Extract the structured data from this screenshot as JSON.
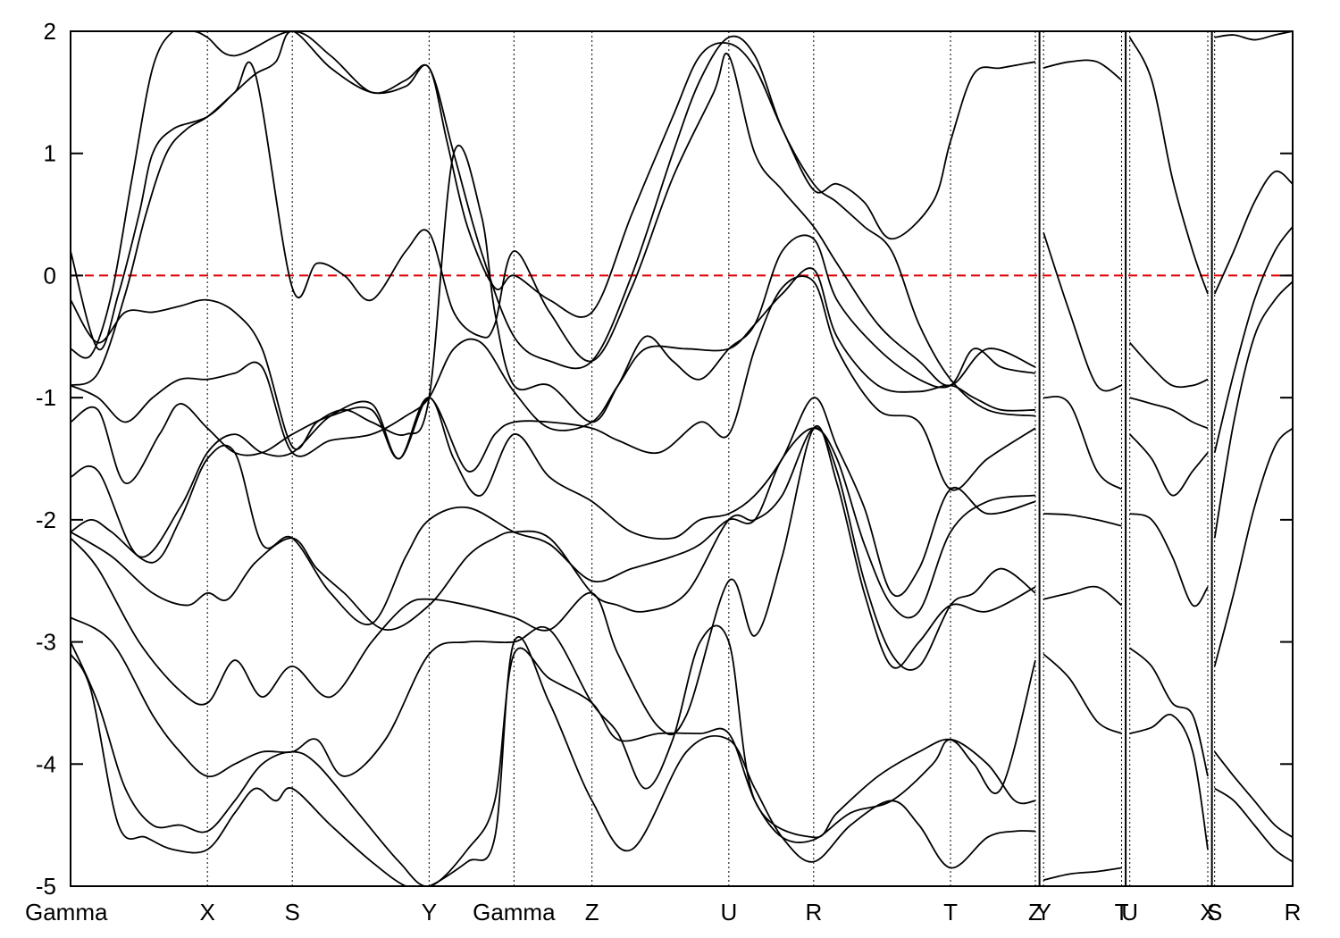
{
  "chart_data": {
    "type": "line",
    "title": "",
    "xlabel": "",
    "ylabel": "",
    "ylim": [
      -5,
      2
    ],
    "yticks": [
      -5,
      -4,
      -3,
      -2,
      -1,
      0,
      1,
      2
    ],
    "fermi_level": 0,
    "k_path": [
      {
        "label": "Gamma",
        "k": 0.0
      },
      {
        "label": "X",
        "k": 1.0
      },
      {
        "label": "S",
        "k": 1.62
      },
      {
        "label": "Y",
        "k": 2.62
      },
      {
        "label": "Gamma",
        "k": 3.24
      },
      {
        "label": "Z",
        "k": 3.81
      },
      {
        "label": "U",
        "k": 4.81
      },
      {
        "label": "R",
        "k": 5.43
      },
      {
        "label": "T",
        "k": 6.43
      },
      {
        "label": "Z",
        "k": 7.05
      },
      {
        "label": "Y",
        "k": 7.11
      },
      {
        "label": "T",
        "k": 7.68
      },
      {
        "label": "U",
        "k": 7.74
      },
      {
        "label": "X",
        "k": 8.31
      },
      {
        "label": "S",
        "k": 8.36
      },
      {
        "label": "R",
        "k": 8.93
      }
    ],
    "path_breaks": [
      7.08,
      7.71,
      8.34
    ],
    "bands": [
      {
        "x": [
          0.0,
          0.15,
          0.35,
          0.55,
          0.75,
          1.0,
          1.2,
          1.35,
          1.5,
          1.62,
          1.9,
          2.2,
          2.45,
          2.62,
          2.9,
          3.1,
          3.24,
          3.5,
          3.81,
          4.1,
          4.5,
          4.81,
          5.0,
          5.2,
          5.43,
          5.7,
          6.0,
          6.2,
          6.43,
          6.7,
          6.9,
          7.05
        ],
        "y": [
          -3.1,
          -3.4,
          -4.5,
          -4.6,
          -4.7,
          -4.7,
          -4.4,
          -4.2,
          -4.3,
          -4.2,
          -4.5,
          -4.8,
          -5.0,
          -5.0,
          -4.8,
          -4.6,
          -3.0,
          -3.5,
          -4.3,
          -4.7,
          -3.9,
          -3.8,
          -4.2,
          -4.6,
          -4.8,
          -4.5,
          -4.3,
          -4.5,
          -4.85,
          -4.6,
          -4.55,
          -4.55
        ]
      },
      {
        "x": [
          0.0,
          0.2,
          0.4,
          0.6,
          0.8,
          1.0,
          1.2,
          1.4,
          1.62,
          1.8,
          2.1,
          2.4,
          2.62,
          2.9,
          3.1,
          3.24,
          3.5,
          3.81,
          4.0,
          4.3,
          4.6,
          4.81,
          5.0,
          5.2,
          5.43,
          5.7,
          6.0,
          6.3,
          6.43,
          6.7,
          6.9,
          7.05
        ],
        "y": [
          -3.0,
          -3.5,
          -4.2,
          -4.5,
          -4.5,
          -4.55,
          -4.3,
          -4.0,
          -3.9,
          -4.0,
          -4.4,
          -4.8,
          -5.0,
          -4.7,
          -4.3,
          -3.1,
          -3.3,
          -3.5,
          -3.8,
          -3.75,
          -3.75,
          -3.75,
          -4.3,
          -4.6,
          -4.62,
          -4.4,
          -4.3,
          -4.0,
          -3.8,
          -4.0,
          -4.3,
          -4.3
        ]
      },
      {
        "x": [
          0.0,
          0.3,
          0.6,
          0.8,
          1.0,
          1.2,
          1.4,
          1.62,
          1.8,
          2.0,
          2.3,
          2.62,
          2.9,
          3.24,
          3.5,
          3.81,
          4.0,
          4.2,
          4.4,
          4.6,
          4.81,
          5.0,
          5.43,
          5.6,
          5.9,
          6.2,
          6.43,
          6.6,
          6.8,
          7.05
        ],
        "y": [
          -2.8,
          -3.0,
          -3.6,
          -3.9,
          -4.1,
          -4.0,
          -3.9,
          -3.9,
          -3.8,
          -4.1,
          -3.8,
          -3.1,
          -3.0,
          -3.0,
          -2.9,
          -3.5,
          -3.75,
          -4.2,
          -3.8,
          -3.0,
          -3.0,
          -4.3,
          -4.6,
          -4.4,
          -4.1,
          -3.9,
          -3.8,
          -4.0,
          -4.2,
          -3.15
        ]
      },
      {
        "x": [
          0.0,
          0.2,
          0.5,
          0.8,
          1.0,
          1.2,
          1.4,
          1.62,
          1.9,
          2.2,
          2.45,
          2.62,
          2.9,
          3.24,
          3.5,
          3.81,
          4.0,
          4.3,
          4.5,
          4.81,
          5.0,
          5.2,
          5.43,
          5.6,
          5.8,
          6.0,
          6.2,
          6.43,
          6.7,
          7.05
        ],
        "y": [
          -2.15,
          -2.4,
          -3.0,
          -3.4,
          -3.5,
          -3.15,
          -3.45,
          -3.2,
          -3.45,
          -3.0,
          -2.7,
          -2.65,
          -2.7,
          -2.8,
          -2.9,
          -2.6,
          -3.1,
          -3.7,
          -3.6,
          -2.5,
          -2.95,
          -2.3,
          -1.25,
          -1.7,
          -2.6,
          -3.2,
          -3.0,
          -2.7,
          -2.75,
          -2.55
        ]
      },
      {
        "x": [
          0.0,
          0.3,
          0.6,
          0.85,
          1.0,
          1.15,
          1.35,
          1.62,
          1.8,
          2.0,
          2.3,
          2.62,
          2.9,
          3.1,
          3.24,
          3.5,
          3.81,
          4.0,
          4.2,
          4.5,
          4.81,
          5.0,
          5.2,
          5.43,
          5.6,
          5.8,
          6.0,
          6.2,
          6.43,
          6.6,
          6.8,
          7.05
        ],
        "y": [
          -2.1,
          -2.3,
          -2.6,
          -2.7,
          -2.6,
          -2.65,
          -2.35,
          -2.15,
          -2.4,
          -2.6,
          -2.9,
          -2.7,
          -2.3,
          -2.15,
          -2.1,
          -2.15,
          -2.6,
          -2.7,
          -2.75,
          -2.6,
          -2.0,
          -2.0,
          -1.8,
          -1.25,
          -1.6,
          -2.5,
          -3.1,
          -3.2,
          -2.7,
          -2.6,
          -2.4,
          -2.6
        ]
      },
      {
        "x": [
          0.0,
          0.15,
          0.3,
          0.6,
          0.8,
          1.0,
          1.2,
          1.4,
          1.62,
          1.9,
          2.2,
          2.45,
          2.62,
          2.9,
          3.24,
          3.5,
          3.81,
          4.1,
          4.4,
          4.6,
          4.81,
          5.0,
          5.2,
          5.43,
          5.6,
          5.8,
          6.0,
          6.2,
          6.43,
          6.7,
          7.05
        ],
        "y": [
          -2.1,
          -2.0,
          -2.1,
          -2.35,
          -2.0,
          -1.5,
          -1.45,
          -2.2,
          -2.15,
          -2.6,
          -2.85,
          -2.3,
          -2.0,
          -1.9,
          -2.1,
          -2.2,
          -2.5,
          -2.4,
          -2.3,
          -2.2,
          -2.0,
          -2.0,
          -1.5,
          -1.25,
          -1.5,
          -2.2,
          -2.7,
          -2.75,
          -2.1,
          -1.85,
          -1.8
        ]
      },
      {
        "x": [
          0.0,
          0.2,
          0.5,
          0.8,
          1.0,
          1.2,
          1.4,
          1.62,
          1.9,
          2.2,
          2.4,
          2.62,
          2.8,
          3.0,
          3.24,
          3.5,
          3.81,
          4.1,
          4.4,
          4.6,
          4.81,
          5.0,
          5.2,
          5.43,
          5.6,
          5.8,
          6.0,
          6.2,
          6.43,
          6.7,
          7.05
        ],
        "y": [
          -1.65,
          -1.6,
          -2.3,
          -1.9,
          -1.45,
          -1.3,
          -1.45,
          -1.45,
          -1.15,
          -1.05,
          -1.5,
          -1.0,
          -1.5,
          -1.8,
          -1.3,
          -1.65,
          -1.85,
          -2.1,
          -2.15,
          -2.0,
          -1.95,
          -1.8,
          -1.5,
          -1.0,
          -1.4,
          -1.9,
          -2.6,
          -2.4,
          -1.75,
          -1.95,
          -1.85
        ]
      },
      {
        "x": [
          0.0,
          0.2,
          0.4,
          0.65,
          0.8,
          1.0,
          1.2,
          1.4,
          1.62,
          1.9,
          2.2,
          2.4,
          2.62,
          2.9,
          3.1,
          3.24,
          3.5,
          3.81,
          4.0,
          4.3,
          4.6,
          4.81,
          5.0,
          5.2,
          5.43,
          5.6,
          5.9,
          6.2,
          6.43,
          6.7,
          7.05
        ],
        "y": [
          -1.2,
          -1.1,
          -1.7,
          -1.3,
          -1.05,
          -1.25,
          -1.45,
          -1.45,
          -1.3,
          -1.15,
          -1.1,
          -1.5,
          -1.0,
          -1.6,
          -1.3,
          -1.2,
          -1.2,
          -1.25,
          -1.35,
          -1.45,
          -1.2,
          -1.3,
          -0.6,
          -0.1,
          -0.05,
          -0.6,
          -1.1,
          -1.2,
          -1.75,
          -1.5,
          -1.25
        ]
      },
      {
        "x": [
          0.0,
          0.2,
          0.4,
          0.6,
          0.8,
          1.0,
          1.2,
          1.4,
          1.62,
          1.9,
          2.2,
          2.45,
          2.62,
          2.8,
          3.0,
          3.24,
          3.5,
          3.81,
          4.0,
          4.2,
          4.5,
          4.81,
          5.0,
          5.2,
          5.43,
          5.6,
          5.9,
          6.2,
          6.43,
          6.6,
          6.8,
          7.05
        ],
        "y": [
          -0.9,
          -1.0,
          -1.2,
          -1.0,
          -0.85,
          -0.85,
          -0.8,
          -0.75,
          -1.45,
          -1.35,
          -1.3,
          -1.15,
          -1.0,
          -0.6,
          -0.55,
          -0.95,
          -1.25,
          -1.2,
          -0.9,
          -0.6,
          -0.6,
          -0.6,
          -0.4,
          -0.15,
          0.05,
          -0.5,
          -0.9,
          -0.95,
          -0.9,
          -1.0,
          -1.1,
          -1.1
        ]
      },
      {
        "x": [
          0.0,
          0.2,
          0.4,
          0.6,
          0.8,
          1.0,
          1.2,
          1.4,
          1.62,
          1.8,
          2.0,
          2.2,
          2.45,
          2.62,
          2.8,
          3.0,
          3.1,
          3.24,
          3.5,
          3.81,
          4.0,
          4.2,
          4.4,
          4.6,
          4.81,
          5.0,
          5.2,
          5.43,
          5.6,
          5.9,
          6.2,
          6.43,
          6.6,
          6.8,
          7.05
        ],
        "y": [
          -0.2,
          -0.55,
          -0.3,
          -0.3,
          -0.25,
          -0.2,
          -0.3,
          -0.6,
          -1.4,
          -1.2,
          -1.1,
          -1.2,
          -1.3,
          -1.0,
          1.0,
          0.5,
          -0.3,
          -0.9,
          -0.9,
          -1.2,
          -0.9,
          -0.5,
          -0.7,
          -0.85,
          -0.6,
          -0.4,
          0.2,
          0.3,
          -0.2,
          -0.6,
          -0.85,
          -0.9,
          -0.6,
          -0.75,
          -0.8
        ]
      },
      {
        "x": [
          0.0,
          0.2,
          0.35,
          0.5,
          0.6,
          0.75,
          1.0,
          1.2,
          1.35,
          1.62,
          1.8,
          2.0,
          2.2,
          2.45,
          2.62,
          2.8,
          3.0,
          3.1,
          3.24,
          3.5,
          3.81,
          4.1,
          4.4,
          4.7,
          4.81,
          5.0,
          5.2,
          5.43,
          5.6,
          5.9,
          6.2,
          6.43,
          6.7,
          7.05
        ],
        "y": [
          0.2,
          -0.6,
          -0.15,
          0.5,
          1.0,
          1.2,
          1.3,
          1.5,
          1.65,
          -0.1,
          0.1,
          0.0,
          -0.2,
          0.2,
          0.35,
          -0.3,
          -0.5,
          -0.4,
          0.2,
          -0.3,
          -0.7,
          -0.1,
          0.8,
          1.5,
          1.8,
          1.0,
          0.7,
          0.4,
          0.1,
          -0.4,
          -0.7,
          -0.9,
          -0.6,
          -0.75
        ]
      },
      {
        "x": [
          0.0,
          0.2,
          0.4,
          0.55,
          0.7,
          0.85,
          1.0,
          1.2,
          1.35,
          1.5,
          1.62,
          1.9,
          2.2,
          2.45,
          2.62,
          2.8,
          3.0,
          3.24,
          3.5,
          3.81,
          4.1,
          4.4,
          4.6,
          4.81,
          5.0,
          5.2,
          5.43,
          5.6,
          5.8,
          6.0,
          6.2,
          6.43,
          6.7,
          7.05
        ],
        "y": [
          -0.9,
          -0.8,
          -0.15,
          0.5,
          1.0,
          1.2,
          1.3,
          1.5,
          1.65,
          1.75,
          2.0,
          1.7,
          1.5,
          1.55,
          1.7,
          1.0,
          0.2,
          -0.5,
          -0.7,
          -0.7,
          0.0,
          1.0,
          1.6,
          1.95,
          1.8,
          1.2,
          0.75,
          0.6,
          0.4,
          0.2,
          -0.4,
          -0.85,
          -1.1,
          -1.15
        ]
      },
      {
        "x": [
          0.0,
          0.15,
          0.3,
          0.45,
          0.6,
          0.75,
          0.9,
          1.0,
          1.2,
          1.62,
          1.9,
          2.2,
          2.45,
          2.62,
          2.75,
          2.9,
          3.1,
          3.24,
          3.5,
          3.81,
          4.1,
          4.4,
          4.6,
          4.81,
          5.0,
          5.2,
          5.43,
          5.6,
          5.8,
          6.0,
          6.3,
          6.43,
          6.6,
          6.8,
          7.05
        ],
        "y": [
          -0.6,
          -0.65,
          -0.15,
          0.8,
          1.7,
          2.0,
          2.0,
          1.95,
          1.8,
          2.0,
          1.8,
          1.5,
          1.6,
          1.7,
          1.1,
          0.4,
          -0.1,
          0.0,
          -0.2,
          -0.3,
          0.5,
          1.3,
          1.8,
          1.9,
          1.7,
          1.2,
          0.7,
          0.75,
          0.6,
          0.3,
          0.6,
          1.1,
          1.65,
          1.7,
          1.75
        ]
      },
      {
        "x": [
          7.11,
          7.3,
          7.5,
          7.68
        ],
        "y": [
          0.35,
          -0.3,
          -0.9,
          -0.9
        ]
      },
      {
        "x": [
          7.11,
          7.3,
          7.5,
          7.68
        ],
        "y": [
          -1.0,
          -1.05,
          -1.6,
          -1.75
        ]
      },
      {
        "x": [
          7.11,
          7.3,
          7.5,
          7.68
        ],
        "y": [
          -1.95,
          -1.96,
          -2.0,
          -2.05
        ]
      },
      {
        "x": [
          7.11,
          7.3,
          7.5,
          7.68
        ],
        "y": [
          -2.65,
          -2.6,
          -2.55,
          -2.7
        ]
      },
      {
        "x": [
          7.11,
          7.3,
          7.5,
          7.68
        ],
        "y": [
          -3.1,
          -3.3,
          -3.65,
          -3.75
        ]
      },
      {
        "x": [
          7.11,
          7.3,
          7.5,
          7.68
        ],
        "y": [
          -4.95,
          -4.9,
          -4.88,
          -4.85
        ]
      },
      {
        "x": [
          7.11,
          7.3,
          7.5,
          7.68
        ],
        "y": [
          1.7,
          1.75,
          1.75,
          1.6
        ]
      },
      {
        "x": [
          7.74,
          7.9,
          8.05,
          8.2,
          8.31
        ],
        "y": [
          1.95,
          1.6,
          0.8,
          0.2,
          -0.15
        ]
      },
      {
        "x": [
          7.74,
          7.9,
          8.05,
          8.2,
          8.31
        ],
        "y": [
          -0.55,
          -0.75,
          -0.9,
          -0.9,
          -0.85
        ]
      },
      {
        "x": [
          7.74,
          7.9,
          8.05,
          8.2,
          8.31
        ],
        "y": [
          -1.0,
          -1.05,
          -1.1,
          -1.2,
          -1.25
        ]
      },
      {
        "x": [
          7.74,
          7.9,
          8.05,
          8.2,
          8.31
        ],
        "y": [
          -1.3,
          -1.5,
          -1.8,
          -1.6,
          -1.45
        ]
      },
      {
        "x": [
          7.74,
          7.9,
          8.05,
          8.2,
          8.31
        ],
        "y": [
          -1.95,
          -2.0,
          -2.3,
          -2.7,
          -2.55
        ]
      },
      {
        "x": [
          7.74,
          7.9,
          8.05,
          8.2,
          8.31
        ],
        "y": [
          -3.05,
          -3.2,
          -3.5,
          -3.6,
          -4.1
        ]
      },
      {
        "x": [
          7.74,
          7.9,
          8.05,
          8.2,
          8.31
        ],
        "y": [
          -3.75,
          -3.7,
          -3.6,
          -3.9,
          -4.7
        ]
      },
      {
        "x": [
          8.36,
          8.5,
          8.65,
          8.8,
          8.93
        ],
        "y": [
          -0.15,
          0.2,
          0.6,
          0.85,
          0.75
        ]
      },
      {
        "x": [
          8.36,
          8.5,
          8.65,
          8.8,
          8.93
        ],
        "y": [
          -1.45,
          -0.8,
          -0.2,
          0.2,
          0.4
        ]
      },
      {
        "x": [
          8.36,
          8.5,
          8.65,
          8.8,
          8.93
        ],
        "y": [
          -2.15,
          -1.2,
          -0.5,
          -0.2,
          -0.05
        ]
      },
      {
        "x": [
          8.36,
          8.5,
          8.65,
          8.8,
          8.93
        ],
        "y": [
          -3.2,
          -2.6,
          -1.9,
          -1.4,
          -1.25
        ]
      },
      {
        "x": [
          8.36,
          8.5,
          8.65,
          8.8,
          8.93
        ],
        "y": [
          -3.9,
          -4.1,
          -4.3,
          -4.5,
          -4.6
        ]
      },
      {
        "x": [
          8.36,
          8.5,
          8.65,
          8.8,
          8.93
        ],
        "y": [
          -4.2,
          -4.3,
          -4.5,
          -4.7,
          -4.8
        ]
      },
      {
        "x": [
          8.36,
          8.5,
          8.65,
          8.8,
          8.93
        ],
        "y": [
          1.95,
          1.97,
          1.93,
          1.97,
          2.0
        ]
      }
    ]
  }
}
